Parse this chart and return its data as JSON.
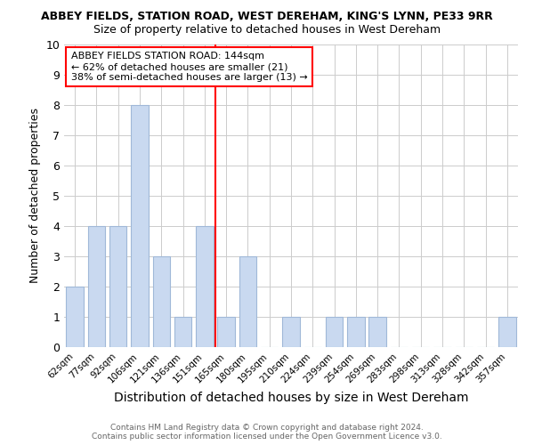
{
  "title": "ABBEY FIELDS, STATION ROAD, WEST DEREHAM, KING'S LYNN, PE33 9RR",
  "subtitle": "Size of property relative to detached houses in West Dereham",
  "xlabel": "Distribution of detached houses by size in West Dereham",
  "ylabel": "Number of detached properties",
  "categories": [
    "62sqm",
    "77sqm",
    "92sqm",
    "106sqm",
    "121sqm",
    "136sqm",
    "151sqm",
    "165sqm",
    "180sqm",
    "195sqm",
    "210sqm",
    "224sqm",
    "239sqm",
    "254sqm",
    "269sqm",
    "283sqm",
    "298sqm",
    "313sqm",
    "328sqm",
    "342sqm",
    "357sqm"
  ],
  "values": [
    2,
    4,
    4,
    8,
    3,
    1,
    4,
    1,
    3,
    0,
    1,
    0,
    1,
    1,
    1,
    0,
    0,
    0,
    0,
    0,
    1
  ],
  "bar_color": "#c9d9f0",
  "bar_edge_color": "#a0b8d8",
  "reference_line_x": 6.5,
  "reference_line_color": "red",
  "ylim": [
    0,
    10
  ],
  "yticks": [
    0,
    1,
    2,
    3,
    4,
    5,
    6,
    7,
    8,
    9,
    10
  ],
  "annotation_title": "ABBEY FIELDS STATION ROAD: 144sqm",
  "annotation_line1": "← 62% of detached houses are smaller (21)",
  "annotation_line2": "38% of semi-detached houses are larger (13) →",
  "annotation_box_color": "red",
  "footer_line1": "Contains HM Land Registry data © Crown copyright and database right 2024.",
  "footer_line2": "Contains public sector information licensed under the Open Government Licence v3.0.",
  "grid_color": "#cccccc",
  "background_color": "#ffffff"
}
